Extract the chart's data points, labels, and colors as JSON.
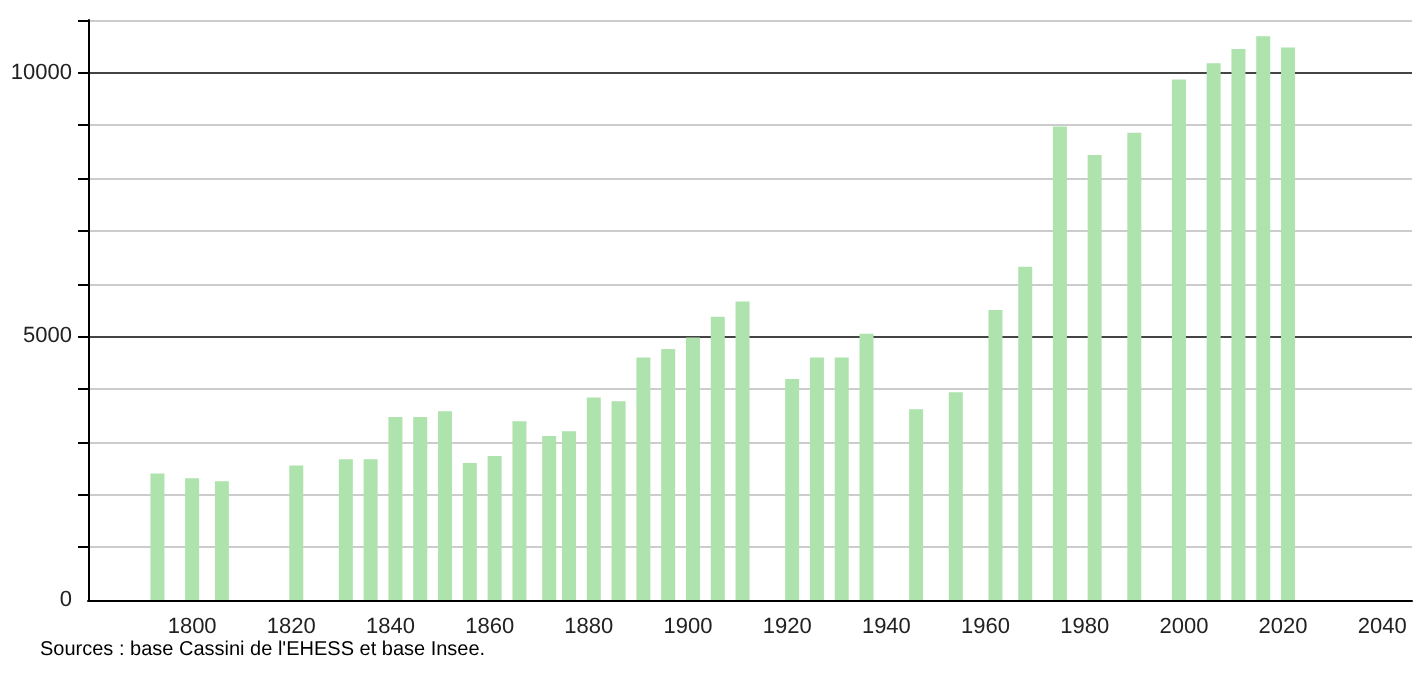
{
  "chart_data": {
    "type": "bar",
    "x": [
      1793,
      1800,
      1806,
      1821,
      1831,
      1836,
      1841,
      1846,
      1851,
      1856,
      1861,
      1866,
      1872,
      1876,
      1881,
      1886,
      1891,
      1896,
      1901,
      1906,
      1911,
      1921,
      1926,
      1931,
      1936,
      1946,
      1954,
      1962,
      1968,
      1975,
      1982,
      1990,
      1999,
      2006,
      2011,
      2016,
      2021
    ],
    "values": [
      2400,
      2310,
      2250,
      2550,
      2670,
      2670,
      3470,
      3470,
      3580,
      2600,
      2730,
      3390,
      3110,
      3200,
      3840,
      3770,
      4600,
      4760,
      4980,
      5370,
      5660,
      4190,
      4600,
      4600,
      5050,
      3620,
      3940,
      5500,
      6320,
      8980,
      8440,
      8860,
      9870,
      10180,
      10450,
      10690,
      10480
    ],
    "color": "#aee3ae",
    "xlim": [
      1779,
      2046
    ],
    "xticks": [
      1800,
      1820,
      1840,
      1860,
      1880,
      1900,
      1920,
      1940,
      1960,
      1980,
      2000,
      2020,
      2040
    ],
    "ylim": [
      0,
      11000
    ],
    "yticks": [
      0,
      {
        "value": 1000,
        "label": null
      },
      {
        "value": 2000,
        "label": null
      },
      {
        "value": 3000,
        "label": null
      },
      {
        "value": 4000,
        "label": null
      },
      5000,
      {
        "value": 6000,
        "label": null
      },
      {
        "value": 7000,
        "label": null
      },
      {
        "value": 8000,
        "label": null
      },
      {
        "value": 9000,
        "label": null
      },
      10000,
      {
        "value": 11000,
        "label": null
      }
    ],
    "grid": "y",
    "annotations": [
      "Sources : base Cassini de l'EHESS et base Insee."
    ]
  }
}
